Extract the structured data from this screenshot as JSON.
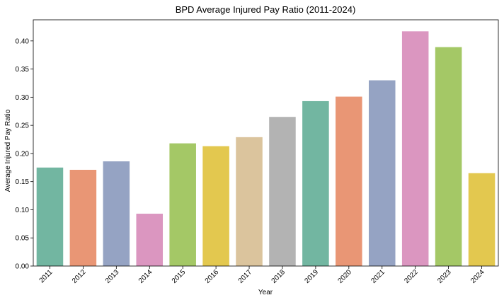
{
  "chart_data": {
    "type": "bar",
    "title": "BPD Average Injured Pay Ratio (2011-2024)",
    "xlabel": "Year",
    "ylabel": "Average Injured Pay Ratio",
    "categories": [
      "2011",
      "2012",
      "2013",
      "2014",
      "2015",
      "2016",
      "2017",
      "2018",
      "2019",
      "2020",
      "2021",
      "2022",
      "2023",
      "2024"
    ],
    "values": [
      0.175,
      0.171,
      0.186,
      0.093,
      0.218,
      0.213,
      0.229,
      0.265,
      0.293,
      0.301,
      0.33,
      0.417,
      0.389,
      0.165
    ],
    "ylim": [
      0,
      0.4375
    ],
    "yticks": [
      "0.00",
      "0.05",
      "0.10",
      "0.15",
      "0.20",
      "0.25",
      "0.30",
      "0.35",
      "0.40"
    ],
    "grid": false,
    "legend": "none",
    "colors": [
      "#72b6a1",
      "#e99675",
      "#95a3c3",
      "#db96c0",
      "#a4c866",
      "#e3c84f",
      "#dbc49d",
      "#b3b3b3",
      "#72b6a1",
      "#e99675",
      "#95a3c3",
      "#db96c0",
      "#a4c866",
      "#e3c84f"
    ]
  }
}
